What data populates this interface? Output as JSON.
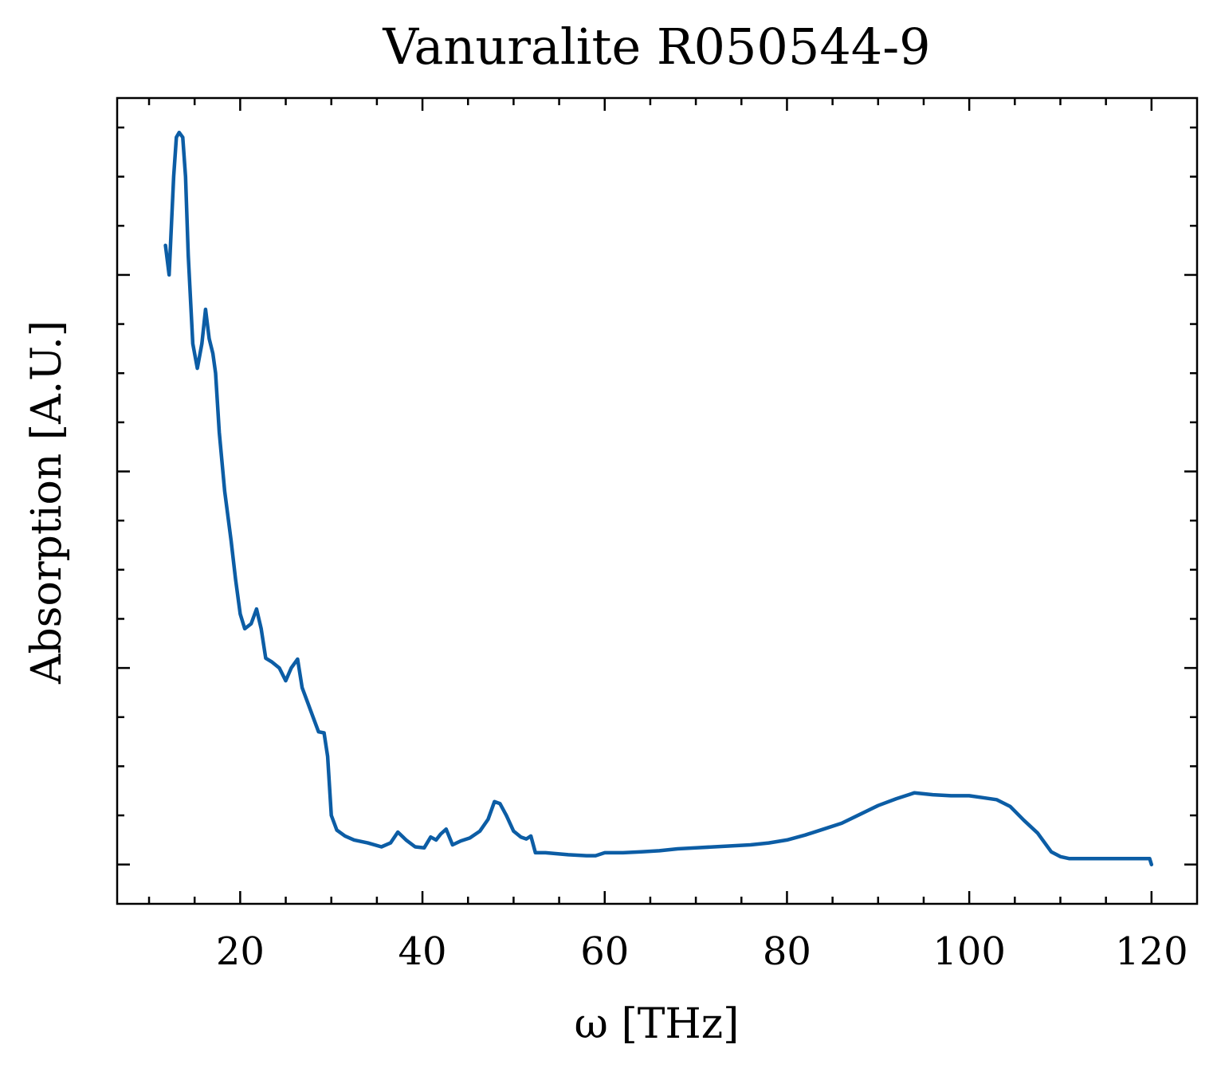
{
  "chart_data": {
    "type": "line",
    "title": "Vanuralite R050544-9",
    "xlabel": "ω [THz]",
    "ylabel": "Absorption [A.U.]",
    "xlim": [
      6.5,
      125
    ],
    "ylim": [
      -0.04,
      0.78
    ],
    "xticks": [
      20,
      40,
      60,
      80,
      100,
      120
    ],
    "xtick_labels": [
      "20",
      "40",
      "60",
      "80",
      "100",
      "120"
    ],
    "yticks_major": [
      0,
      0.2,
      0.4,
      0.6
    ],
    "yticks_minor_step": 0.05,
    "ytick_labels_shown": false,
    "grid": false,
    "legend": "none",
    "color": "#0C5DA5",
    "series": [
      {
        "x": [
          11.8,
          12.2,
          12.7,
          13.0,
          13.3,
          13.7,
          14.0,
          14.3,
          14.8,
          15.3,
          15.8,
          16.2,
          16.6,
          17.0,
          17.3,
          17.7,
          18.3,
          19.0,
          19.5,
          20.0,
          20.5,
          21.2,
          21.8,
          22.3,
          22.8,
          23.5,
          24.3,
          25.0,
          25.6,
          26.3,
          26.8,
          27.4,
          28.0,
          28.6,
          29.2,
          29.6,
          30.0,
          30.6,
          31.5,
          32.5,
          34.0,
          35.5,
          36.5,
          37.3,
          38.2,
          39.2,
          40.2,
          40.9,
          41.5,
          42.0,
          42.6,
          43.3,
          44.2,
          45.2,
          46.3,
          47.2,
          47.9,
          48.5,
          49.2,
          50.0,
          50.8,
          51.4,
          51.9,
          52.4,
          53.5,
          56.0,
          58.0,
          59.0,
          60.0,
          62.0,
          64.0,
          66.0,
          68.0,
          70.0,
          72.0,
          74.0,
          76.0,
          78.0,
          80.0,
          82.0,
          84.0,
          86.0,
          88.0,
          90.0,
          92.0,
          94.0,
          96.0,
          98.0,
          100.0,
          101.5,
          103.0,
          104.5,
          106.0,
          107.5,
          109.0,
          110.0,
          111.0,
          113.0,
          115.0,
          117.0,
          119.0,
          119.8,
          120.0
        ],
        "y": [
          0.63,
          0.6,
          0.7,
          0.74,
          0.745,
          0.74,
          0.7,
          0.62,
          0.53,
          0.505,
          0.53,
          0.565,
          0.535,
          0.52,
          0.5,
          0.44,
          0.38,
          0.33,
          0.29,
          0.255,
          0.24,
          0.245,
          0.26,
          0.24,
          0.21,
          0.206,
          0.2,
          0.187,
          0.2,
          0.209,
          0.18,
          0.165,
          0.15,
          0.135,
          0.134,
          0.11,
          0.05,
          0.035,
          0.029,
          0.025,
          0.022,
          0.018,
          0.022,
          0.033,
          0.025,
          0.018,
          0.017,
          0.028,
          0.025,
          0.031,
          0.036,
          0.02,
          0.024,
          0.027,
          0.034,
          0.046,
          0.064,
          0.062,
          0.05,
          0.034,
          0.028,
          0.026,
          0.029,
          0.012,
          0.012,
          0.01,
          0.009,
          0.009,
          0.012,
          0.012,
          0.013,
          0.014,
          0.016,
          0.017,
          0.018,
          0.019,
          0.02,
          0.022,
          0.025,
          0.03,
          0.036,
          0.042,
          0.051,
          0.06,
          0.067,
          0.073,
          0.071,
          0.07,
          0.07,
          0.068,
          0.066,
          0.059,
          0.045,
          0.032,
          0.013,
          0.008,
          0.006,
          0.006,
          0.006,
          0.006,
          0.006,
          0.006,
          0.0
        ]
      }
    ]
  }
}
